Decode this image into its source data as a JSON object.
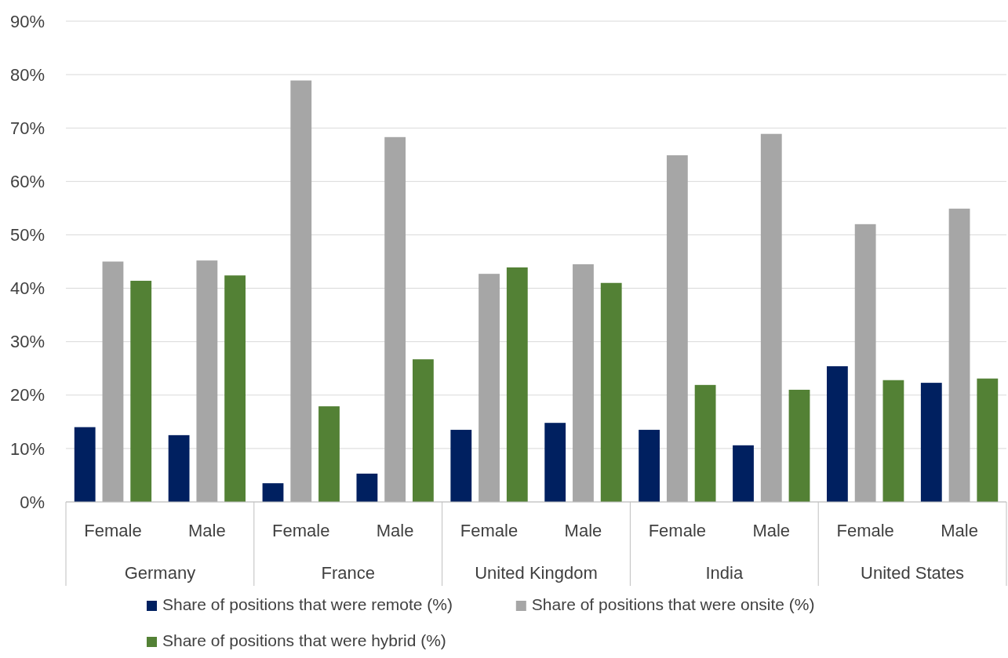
{
  "chart_data": {
    "type": "bar",
    "categories": [
      "Female",
      "Male",
      "Female",
      "Male",
      "Female",
      "Male",
      "Female",
      "Male",
      "Female",
      "Male"
    ],
    "annotations": [
      "Germany",
      "France",
      "United Kingdom",
      "India",
      "United States"
    ],
    "series": [
      {
        "name": "Share of positions that were remote (%)",
        "color": "#002060",
        "values": [
          14,
          12.5,
          3.5,
          5.3,
          13.5,
          14.8,
          13.5,
          10.6,
          25.4,
          22.3
        ]
      },
      {
        "name": "Share of positions that were onsite (%)",
        "color": "#a6a6a6",
        "values": [
          45,
          45.2,
          78.9,
          68.3,
          42.7,
          44.5,
          64.9,
          68.9,
          52,
          54.9
        ]
      },
      {
        "name": "Share of positions that were hybrid (%)",
        "color": "#538135",
        "values": [
          41.4,
          42.4,
          17.9,
          26.7,
          43.9,
          41,
          21.9,
          21,
          22.8,
          23.1
        ]
      }
    ],
    "ylim": [
      0,
      90
    ],
    "yticks": [
      {
        "value": 0,
        "label": "0%"
      },
      {
        "value": 10,
        "label": "10%"
      },
      {
        "value": 20,
        "label": "20%"
      },
      {
        "value": 30,
        "label": "30%"
      },
      {
        "value": 40,
        "label": "40%"
      },
      {
        "value": 50,
        "label": "50%"
      },
      {
        "value": 60,
        "label": "60%"
      },
      {
        "value": 70,
        "label": "70%"
      },
      {
        "value": 80,
        "label": "80%"
      },
      {
        "value": 90,
        "label": "90%"
      }
    ],
    "grid": "y",
    "legend": "bottom"
  }
}
